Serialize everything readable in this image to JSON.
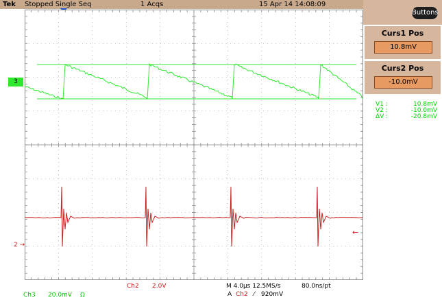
{
  "header": {
    "brand": "Tek",
    "status": "Stopped  Single Seq",
    "acqs": "1 Acqs",
    "datetime": "15 Apr 14 14:08:09"
  },
  "side_panel": {
    "buttons_label": "Buttons",
    "curs1": {
      "title": "Curs1 Pos",
      "value": "10.8mV"
    },
    "curs2": {
      "title": "Curs2 Pos",
      "value": "-10.0mV"
    },
    "readout": [
      {
        "label": "V1 :",
        "value": "10.8mV"
      },
      {
        "label": "V2 :",
        "value": "-10.0mV"
      },
      {
        "label": "ΔV :",
        "value": "-20.8mV"
      }
    ]
  },
  "markers": {
    "ch3": "3",
    "ch2": "2"
  },
  "footer": {
    "ch3_label": "Ch3",
    "ch3_scale": "20.0mV",
    "ch3_coupling": "Ω",
    "ch2_label": "Ch2",
    "ch2_scale": "2.0V",
    "timebase": "M 4.0µs 12.5MS/s",
    "pts": "80.0ns/pt",
    "trigger_prefix": "A",
    "trigger_source": "Ch2",
    "trigger_slope": "⁄",
    "trigger_level": "920mV"
  },
  "colors": {
    "ch3": "#2ee82e",
    "ch2": "#cc1c1c",
    "grid": "#8a8a8a",
    "panel": "#d6b69d",
    "cursor_box": "#e79a61"
  }
}
